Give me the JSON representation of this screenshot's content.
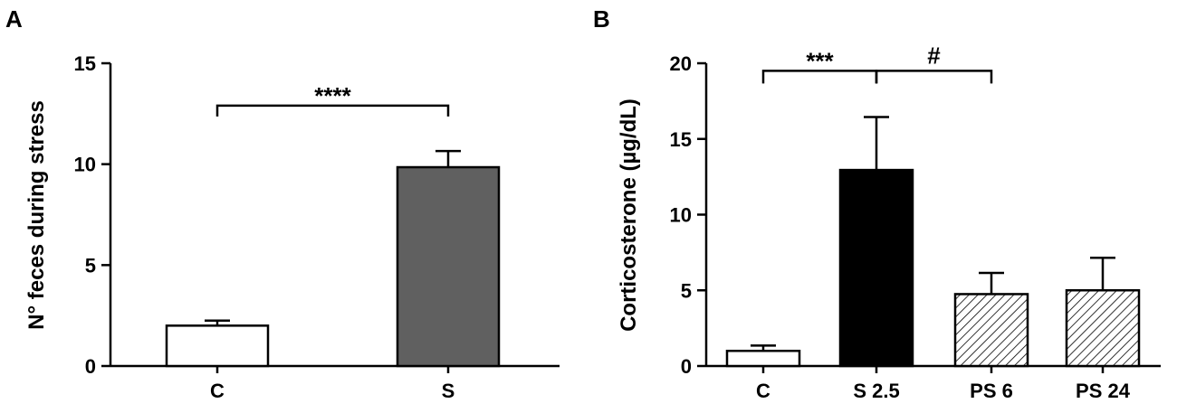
{
  "chart_data": [
    {
      "panel": "A",
      "type": "bar",
      "ylabel": "N° feces during stress",
      "xlabel": "",
      "ylim": [
        0,
        15
      ],
      "yticks": [
        0,
        5,
        10,
        15
      ],
      "categories": [
        "C",
        "S"
      ],
      "values": [
        2.0,
        9.85
      ],
      "errors": [
        0.25,
        0.8
      ],
      "fills": [
        "#ffffff",
        "#606060"
      ],
      "patterns": [
        "solid",
        "solid"
      ],
      "annotations": [
        {
          "text": "****",
          "from": 0,
          "to": 1,
          "y": 12.9
        }
      ]
    },
    {
      "panel": "B",
      "type": "bar",
      "ylabel": "Corticosterone (µg/dL)",
      "xlabel": "",
      "ylim": [
        0,
        20
      ],
      "yticks": [
        0,
        5,
        10,
        15,
        20
      ],
      "categories": [
        "C",
        "S 2.5",
        "PS 6",
        "PS 24"
      ],
      "values": [
        1.0,
        12.95,
        4.75,
        5.0
      ],
      "errors": [
        0.35,
        3.5,
        1.4,
        2.15
      ],
      "fills": [
        "#ffffff",
        "#000000",
        "#ffffff",
        "#ffffff"
      ],
      "patterns": [
        "solid",
        "solid",
        "hatch",
        "hatch"
      ],
      "annotations": [
        {
          "text": "***",
          "from": 0,
          "to": 1,
          "y": 19.5
        },
        {
          "text": "#",
          "from": 1,
          "to": 2,
          "y": 19.5
        }
      ]
    }
  ]
}
